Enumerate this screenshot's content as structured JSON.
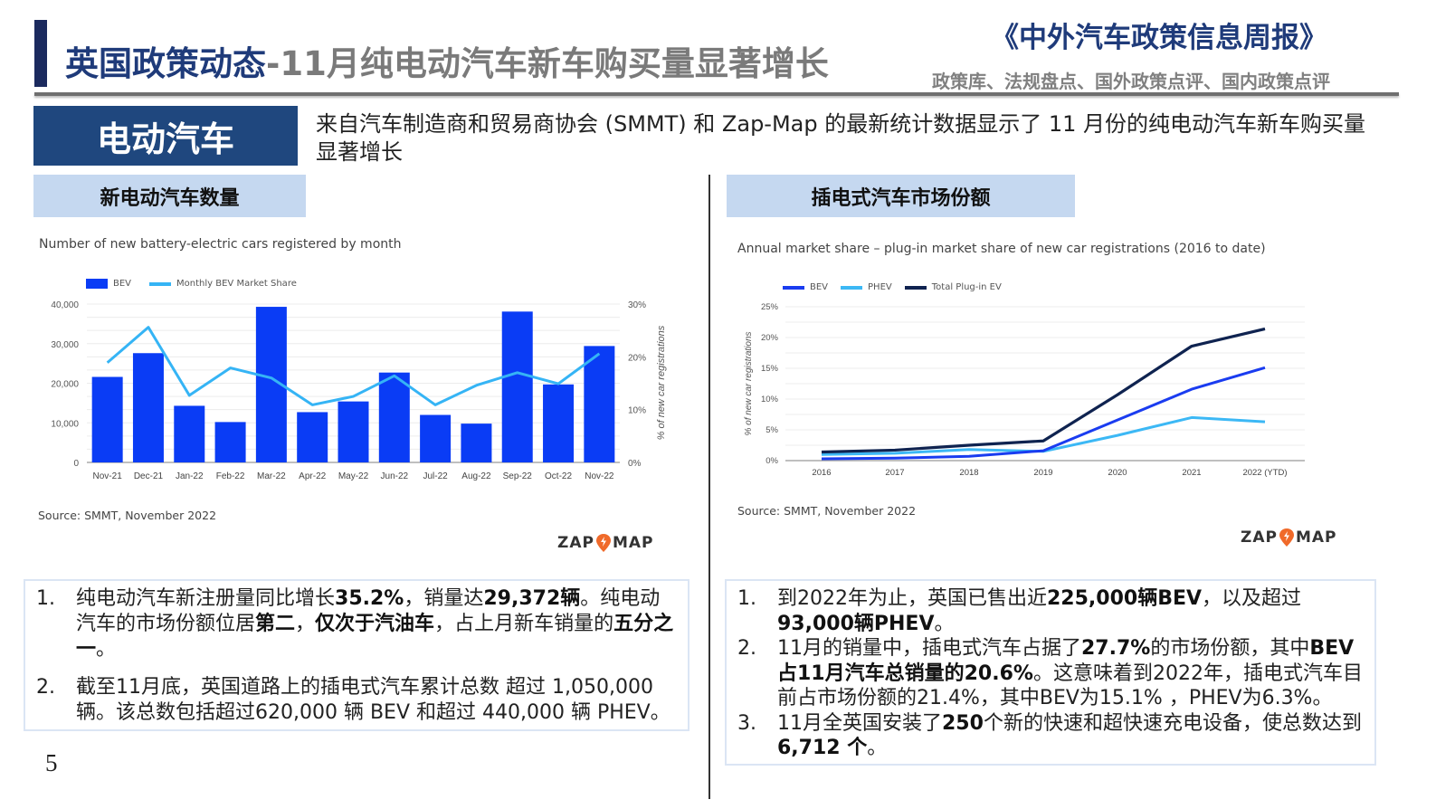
{
  "header": {
    "title_prefix": "英国政策动态",
    "title_suffix": "-11月纯电动汽车新车购买量显著增长",
    "publication": "《中外汽车政策信息周报》",
    "publication_sub": "政策库、法规盘点、国外政策点评、国内政策点评"
  },
  "section": {
    "label": "电动汽车",
    "intro": "来自汽车制造商和贸易商协会 (SMMT) 和 Zap-Map 的最新统计数据显示了 11 月份的纯电动汽车新车购买量显著增长"
  },
  "left_panel": {
    "header": "新电动汽车数量",
    "chart_title": "Number of new battery-electric cars registered by month",
    "legend": {
      "bar": "BEV",
      "line": "Monthly BEV Market Share"
    },
    "y_ticks": [
      "0",
      "10,000",
      "20,000",
      "30,000",
      "40,000"
    ],
    "y2_ticks": [
      "0%",
      "10%",
      "20%",
      "30%"
    ],
    "y2_label": "% of new car registrations",
    "x_labels": [
      "Nov-21",
      "Dec-21",
      "Jan-22",
      "Feb-22",
      "Mar-22",
      "Apr-22",
      "May-22",
      "Jun-22",
      "Jul-22",
      "Aug-22",
      "Sep-22",
      "Oct-22",
      "Nov-22"
    ],
    "source": "Source: SMMT, November 2022",
    "logo": {
      "left": "ZAP",
      "right": "MAP"
    },
    "notes": [
      {
        "num": "1.",
        "parts": [
          {
            "t": "纯电动汽车新注册量同比增长",
            "b": false
          },
          {
            "t": "35.2%",
            "b": true
          },
          {
            "t": "，销量达",
            "b": false
          },
          {
            "t": "29,372辆",
            "b": true
          },
          {
            "t": "。纯电动汽车的市场份额位居",
            "b": false
          },
          {
            "t": "第二",
            "b": true
          },
          {
            "t": "，",
            "b": false
          },
          {
            "t": "仅次于汽油车",
            "b": true
          },
          {
            "t": "，占上月新车销量的",
            "b": false
          },
          {
            "t": "五分之一",
            "b": true
          },
          {
            "t": "。",
            "b": false
          }
        ]
      },
      {
        "num": "2.",
        "parts": [
          {
            "t": "截至11月底，英国道路上的插电式汽车累计总数 超过 1,050,000 辆。该总数包括超过620,000 辆 BEV 和超过 440,000 辆 PHEV。",
            "b": false
          }
        ]
      }
    ]
  },
  "right_panel": {
    "header": "插电式汽车市场份额",
    "chart_title": "Annual market share – plug-in market share of new car registrations (2016 to date)",
    "legend": [
      "BEV",
      "PHEV",
      "Total Plug-in EV"
    ],
    "y_ticks": [
      "0%",
      "5%",
      "10%",
      "15%",
      "20%",
      "25%"
    ],
    "y_label": "% of new car registrations",
    "x_labels": [
      "2016",
      "2017",
      "2018",
      "2019",
      "2020",
      "2021",
      "2022 (YTD)"
    ],
    "source": "Source: SMMT, November 2022",
    "logo": {
      "left": "ZAP",
      "right": "MAP"
    },
    "notes": [
      {
        "num": "1.",
        "parts": [
          {
            "t": "到2022年为止，英国已售出近",
            "b": false
          },
          {
            "t": "225,000辆BEV",
            "b": true
          },
          {
            "t": "，以及超过",
            "b": false
          },
          {
            "t": "93,000辆PHEV",
            "b": true
          },
          {
            "t": "。",
            "b": false
          }
        ]
      },
      {
        "num": "2.",
        "parts": [
          {
            "t": "11月的销量中，插电式汽车占据了",
            "b": false
          },
          {
            "t": "27.7%",
            "b": true
          },
          {
            "t": "的市场份额，其中",
            "b": false
          },
          {
            "t": "BEV占11月汽车总销量的20.6%",
            "b": true
          },
          {
            "t": "。这意味着到2022年，插电式汽车目前占市场份额的21.4%，其中BEV为15.1% ，PHEV为6.3%。",
            "b": false
          }
        ]
      },
      {
        "num": "3.",
        "parts": [
          {
            "t": "11月全英国安装了",
            "b": false
          },
          {
            "t": "250",
            "b": true
          },
          {
            "t": "个新的快速和超快速充电设备，使总数达到 ",
            "b": false
          },
          {
            "t": "6,712 个",
            "b": true
          },
          {
            "t": "。",
            "b": false
          }
        ]
      }
    ]
  },
  "page_number": "5",
  "colors": {
    "navy": "#1b2a5e",
    "section_blue": "#1f477e",
    "sub_header_bg": "#c5d8f0",
    "bev_bar": "#0a3cf5",
    "share_line": "#35b4f5",
    "bev_line": "#1a3cf0",
    "phev_line": "#3cb8f5",
    "total_line": "#0f2350",
    "zap_orange": "#f06a2a"
  },
  "chart_data": [
    {
      "type": "bar",
      "title": "Number of new battery-electric cars registered by month",
      "xlabel": "",
      "ylabel": "",
      "y2label": "% of new car registrations",
      "categories": [
        "Nov-21",
        "Dec-21",
        "Jan-22",
        "Feb-22",
        "Mar-22",
        "Apr-22",
        "May-22",
        "Jun-22",
        "Jul-22",
        "Aug-22",
        "Sep-22",
        "Oct-22",
        "Nov-22"
      ],
      "series": [
        {
          "name": "BEV",
          "type": "bar",
          "axis": "left",
          "values": [
            21600,
            27600,
            14300,
            10200,
            39300,
            12700,
            15400,
            22700,
            12000,
            9800,
            38100,
            19700,
            29400
          ]
        },
        {
          "name": "Monthly BEV Market Share",
          "type": "line",
          "axis": "right",
          "unit": "%",
          "values": [
            18.9,
            25.6,
            12.7,
            17.9,
            16.0,
            10.9,
            12.5,
            16.4,
            10.9,
            14.6,
            17.0,
            14.9,
            20.6
          ]
        }
      ],
      "ylim": [
        0,
        40000
      ],
      "y2lim": [
        0,
        30
      ],
      "y_ticks": [
        0,
        10000,
        20000,
        30000,
        40000
      ],
      "y2_ticks": [
        0,
        10,
        20,
        30
      ],
      "grid": true,
      "legend_position": "top-left",
      "source": "Source: SMMT, November 2022"
    },
    {
      "type": "line",
      "title": "Annual market share – plug-in market share of new car registrations (2016 to date)",
      "xlabel": "",
      "ylabel": "% of new car registrations",
      "x": [
        "2016",
        "2017",
        "2018",
        "2019",
        "2020",
        "2021",
        "2022 (YTD)"
      ],
      "series": [
        {
          "name": "BEV",
          "values": [
            0.3,
            0.4,
            0.7,
            1.6,
            6.6,
            11.6,
            15.1
          ]
        },
        {
          "name": "PHEV",
          "values": [
            1.0,
            1.2,
            1.8,
            1.5,
            4.1,
            7.0,
            6.3
          ]
        },
        {
          "name": "Total Plug-in EV",
          "values": [
            1.4,
            1.7,
            2.5,
            3.2,
            10.7,
            18.6,
            21.4
          ]
        }
      ],
      "ylim": [
        0,
        25
      ],
      "y_ticks": [
        0,
        5,
        10,
        15,
        20,
        25
      ],
      "grid": true,
      "legend_position": "top-left",
      "source": "Source: SMMT, November 2022"
    }
  ]
}
